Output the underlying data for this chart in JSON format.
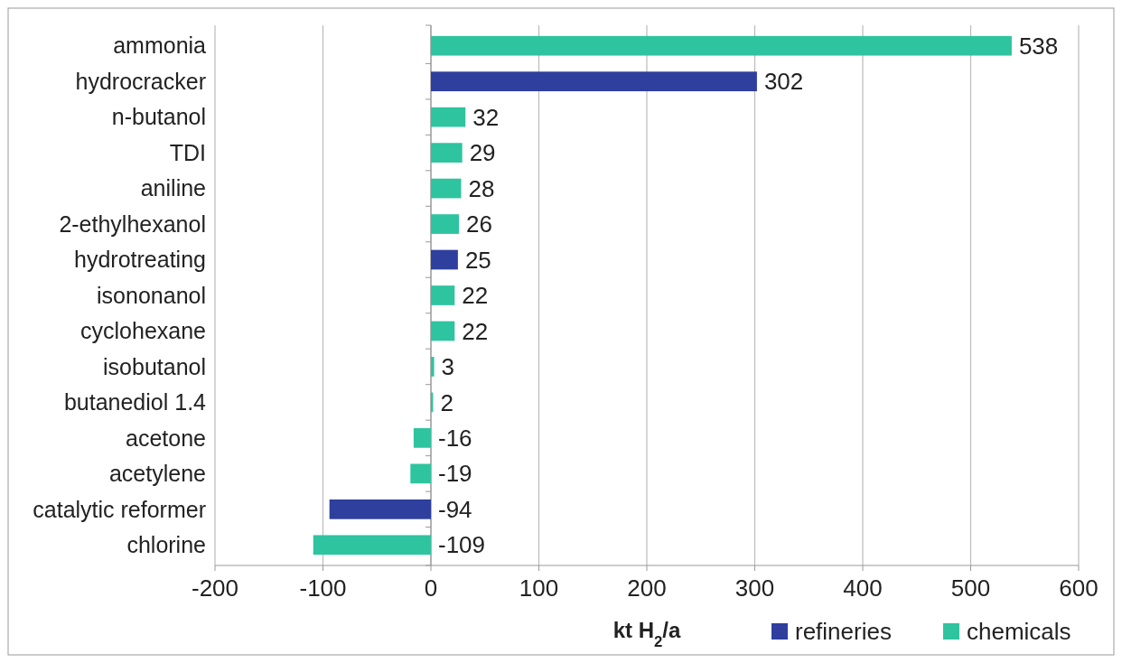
{
  "chart_data": {
    "type": "bar",
    "orientation": "horizontal",
    "xlabel": "kt H$_{2}$/a",
    "categories": [
      "ammonia",
      "hydrocracker",
      "n-butanol",
      "TDI",
      "aniline",
      "2-ethylhexanol",
      "hydrotreating",
      "isononanol",
      "cyclohexane",
      "isobutanol",
      "butanediol 1.4",
      "acetone",
      "acetylene",
      "catalytic reformer",
      "chlorine"
    ],
    "series": [
      {
        "name": "refineries",
        "color": "#2e3f9e",
        "values": [
          null,
          302,
          null,
          null,
          null,
          null,
          25,
          null,
          null,
          null,
          null,
          null,
          null,
          -94,
          null
        ]
      },
      {
        "name": "chemicals",
        "color": "#2ec49f",
        "values": [
          538,
          null,
          32,
          29,
          28,
          26,
          null,
          22,
          22,
          3,
          2,
          -16,
          -19,
          null,
          -109
        ]
      }
    ],
    "xlim": [
      -200,
      600
    ],
    "xticks": [
      -200,
      -100,
      0,
      100,
      200,
      300,
      400,
      500,
      600
    ],
    "grid": "x",
    "legend": "bottom right",
    "data_labels": true
  }
}
